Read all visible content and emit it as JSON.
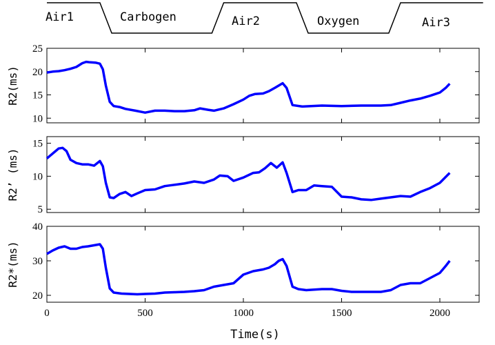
{
  "chart_data": {
    "type": "line",
    "series_color": "#0000ff",
    "condition_bar": {
      "segments": [
        {
          "label": "Air1",
          "x_start": 0,
          "x_end": 270,
          "level": "high"
        },
        {
          "label": "Carbogen",
          "x_start": 330,
          "x_end": 840,
          "level": "low"
        },
        {
          "label": "Air2",
          "x_start": 900,
          "x_end": 1270,
          "level": "high"
        },
        {
          "label": "Oxygen",
          "x_start": 1330,
          "x_end": 1740,
          "level": "low"
        },
        {
          "label": "Air3",
          "x_start": 1800,
          "x_end": 2220,
          "level": "high"
        }
      ]
    },
    "xlabel": "Time(s)",
    "xlim": [
      0,
      2200
    ],
    "xticks": [
      0,
      500,
      1000,
      1500,
      2000
    ],
    "charts": [
      {
        "name": "r2",
        "ylabel": "R2(ms)",
        "ylim": [
          9,
          25
        ],
        "yticks": [
          10,
          15,
          20,
          25
        ],
        "x": [
          0,
          30,
          60,
          90,
          120,
          150,
          180,
          200,
          220,
          250,
          270,
          285,
          300,
          320,
          340,
          370,
          400,
          450,
          500,
          550,
          600,
          650,
          700,
          750,
          780,
          820,
          850,
          900,
          950,
          1000,
          1030,
          1060,
          1100,
          1130,
          1160,
          1180,
          1200,
          1220,
          1250,
          1300,
          1400,
          1500,
          1600,
          1700,
          1750,
          1800,
          1850,
          1900,
          1950,
          2000,
          2030,
          2050
        ],
        "values": [
          19.8,
          20.0,
          20.1,
          20.3,
          20.6,
          21.0,
          21.8,
          22.1,
          22.0,
          21.9,
          21.7,
          20.5,
          17.0,
          13.5,
          12.6,
          12.4,
          12.0,
          11.6,
          11.2,
          11.6,
          11.6,
          11.5,
          11.5,
          11.7,
          12.1,
          11.8,
          11.6,
          12.1,
          13.0,
          14.0,
          14.8,
          15.2,
          15.3,
          15.8,
          16.5,
          17.0,
          17.5,
          16.5,
          12.8,
          12.5,
          12.7,
          12.6,
          12.7,
          12.7,
          12.8,
          13.3,
          13.8,
          14.2,
          14.8,
          15.5,
          16.5,
          17.4
        ]
      },
      {
        "name": "r2prime",
        "ylabel": "R2’ (ms)",
        "ylim": [
          4.5,
          16
        ],
        "yticks": [
          5,
          10,
          15
        ],
        "x": [
          0,
          20,
          40,
          60,
          80,
          100,
          120,
          150,
          180,
          210,
          240,
          270,
          285,
          300,
          320,
          340,
          370,
          400,
          430,
          460,
          500,
          550,
          600,
          650,
          700,
          750,
          800,
          850,
          880,
          920,
          950,
          1000,
          1050,
          1080,
          1110,
          1140,
          1170,
          1200,
          1220,
          1250,
          1280,
          1320,
          1360,
          1400,
          1450,
          1500,
          1550,
          1600,
          1650,
          1700,
          1750,
          1800,
          1850,
          1900,
          1950,
          2000,
          2050
        ],
        "values": [
          12.7,
          13.2,
          13.7,
          14.2,
          14.3,
          13.8,
          12.5,
          12.0,
          11.8,
          11.8,
          11.6,
          12.3,
          11.5,
          9.0,
          6.8,
          6.7,
          7.3,
          7.6,
          7.0,
          7.4,
          7.9,
          8.0,
          8.5,
          8.7,
          8.9,
          9.2,
          9.0,
          9.5,
          10.1,
          10.0,
          9.3,
          9.8,
          10.5,
          10.6,
          11.2,
          12.0,
          11.3,
          12.1,
          10.5,
          7.6,
          7.9,
          7.9,
          8.6,
          8.5,
          8.4,
          6.9,
          6.8,
          6.5,
          6.4,
          6.6,
          6.8,
          7.0,
          6.9,
          7.6,
          8.2,
          9.0,
          10.5
        ]
      },
      {
        "name": "r2star",
        "ylabel": "R2*(ms)",
        "ylim": [
          18,
          40
        ],
        "yticks": [
          20,
          30,
          40
        ],
        "x": [
          0,
          30,
          60,
          90,
          120,
          150,
          180,
          210,
          240,
          270,
          285,
          300,
          320,
          340,
          380,
          420,
          460,
          500,
          550,
          600,
          650,
          700,
          750,
          800,
          850,
          900,
          950,
          1000,
          1050,
          1100,
          1130,
          1160,
          1180,
          1200,
          1220,
          1250,
          1280,
          1320,
          1400,
          1450,
          1500,
          1550,
          1600,
          1650,
          1700,
          1750,
          1800,
          1850,
          1900,
          1950,
          2000,
          2030,
          2050
        ],
        "values": [
          32.0,
          33.0,
          33.8,
          34.2,
          33.5,
          33.5,
          34.0,
          34.2,
          34.5,
          34.8,
          33.5,
          28.0,
          22.0,
          20.8,
          20.5,
          20.4,
          20.3,
          20.4,
          20.5,
          20.8,
          20.9,
          21.0,
          21.2,
          21.5,
          22.5,
          23.0,
          23.5,
          26.0,
          27.0,
          27.5,
          28.0,
          29.0,
          30.0,
          30.5,
          28.5,
          22.5,
          21.8,
          21.5,
          21.8,
          21.8,
          21.3,
          21.0,
          21.0,
          21.0,
          21.0,
          21.5,
          23.0,
          23.5,
          23.5,
          25.0,
          26.5,
          28.5,
          30.0
        ]
      }
    ]
  }
}
